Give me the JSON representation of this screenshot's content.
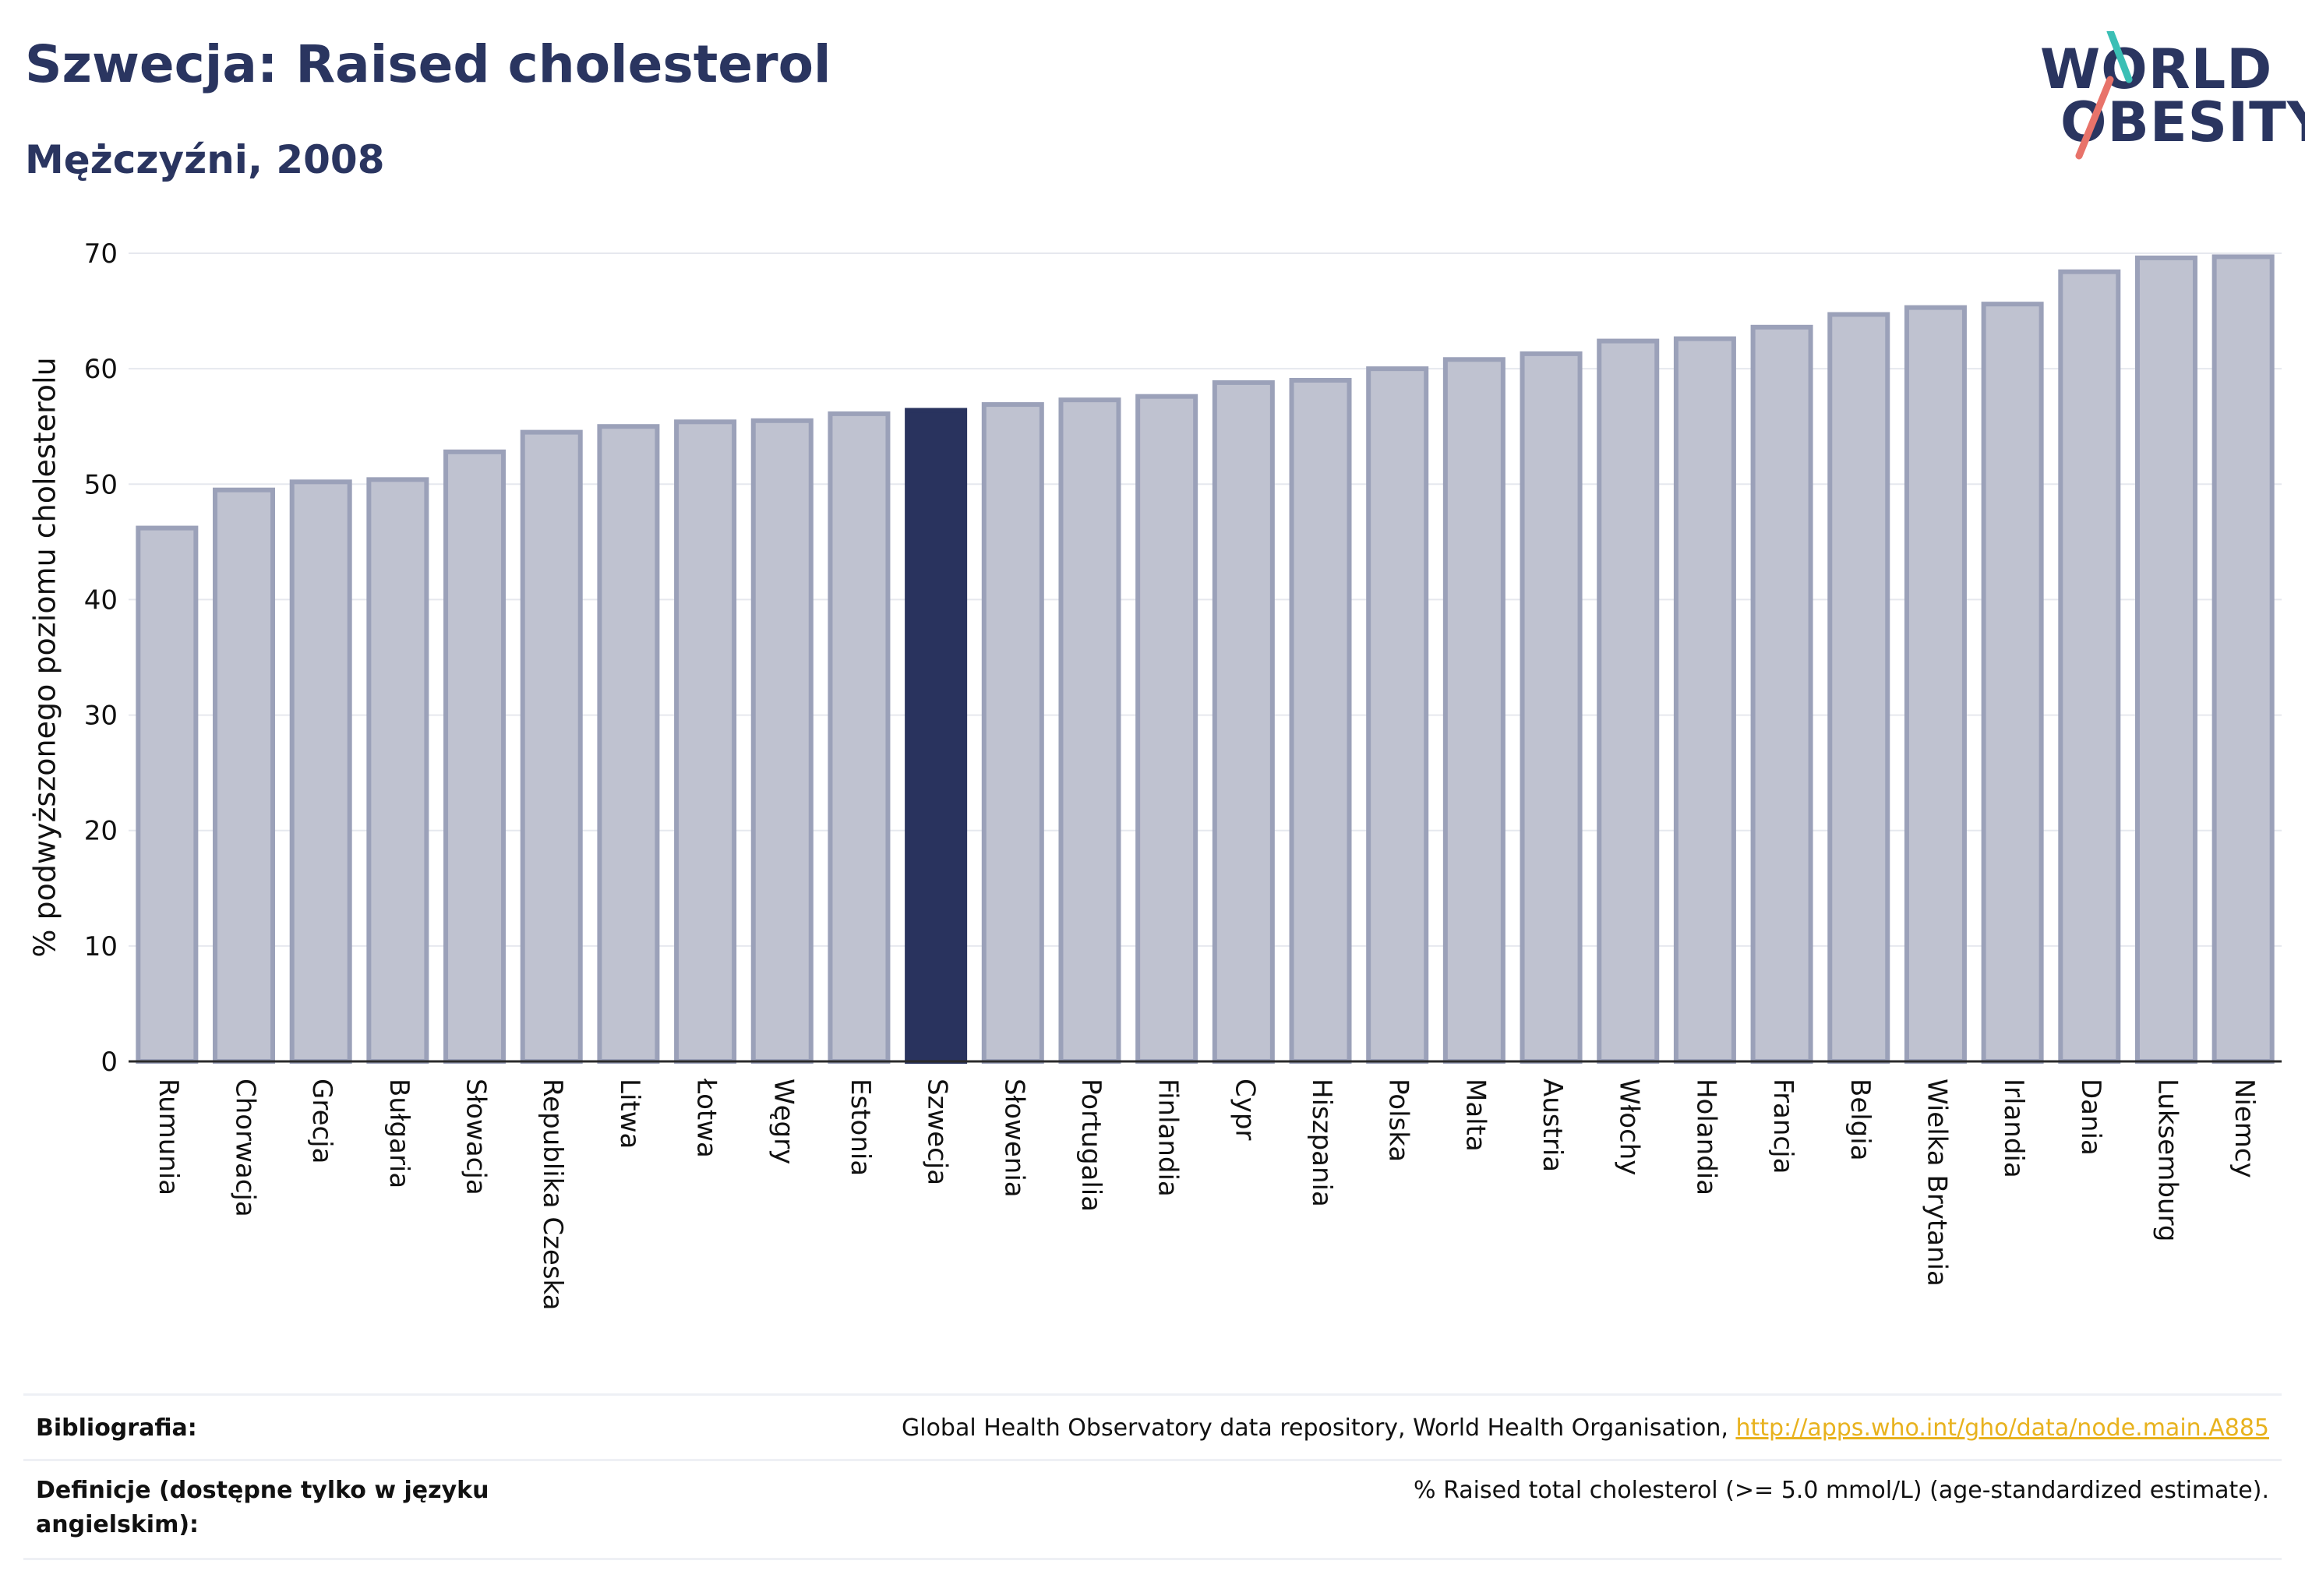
{
  "header": {
    "title": "Szwecja: Raised cholesterol",
    "subtitle": "Mężczyźni, 2008"
  },
  "logo": {
    "line1": "WORLD",
    "line2": "OBESITY"
  },
  "colors": {
    "bar": "#bfc2d0",
    "bar_border": "#9ba1b9",
    "highlight": "#29335e",
    "axis": "#2a2a2a",
    "grid": "#e6e8ee",
    "title": "#2a3560",
    "link": "#e8b21e"
  },
  "chart_data": {
    "type": "bar",
    "title": "Szwecja: Raised cholesterol",
    "subtitle": "Mężczyźni, 2008",
    "ylabel": "% podwyższonego poziomu cholesterolu",
    "xlabel": "",
    "ylim": [
      0,
      70
    ],
    "yticks": [
      0,
      10,
      20,
      30,
      40,
      50,
      60,
      70
    ],
    "grid": true,
    "highlight": "Szwecja",
    "categories": [
      "Rumunia",
      "Chorwacja",
      "Grecja",
      "Bułgaria",
      "Słowacja",
      "Republika Czeska",
      "Litwa",
      "Łotwa",
      "Węgry",
      "Estonia",
      "Szwecja",
      "Słowenia",
      "Portugalia",
      "Finlandia",
      "Cypr",
      "Hiszpania",
      "Polska",
      "Malta",
      "Austria",
      "Włochy",
      "Holandia",
      "Francja",
      "Belgia",
      "Wielka Brytania",
      "Irlandia",
      "Dania",
      "Luksemburg",
      "Niemcy"
    ],
    "values": [
      46.2,
      49.5,
      50.2,
      50.4,
      52.8,
      54.5,
      55.0,
      55.4,
      55.5,
      56.1,
      56.4,
      56.9,
      57.3,
      57.6,
      58.8,
      59.0,
      60.0,
      60.8,
      61.3,
      62.4,
      62.6,
      63.6,
      64.7,
      65.3,
      65.6,
      68.4,
      69.6,
      69.7
    ]
  },
  "footer": {
    "bibliography_label": "Bibliografia:",
    "bibliography_text": "Global Health Observatory data repository, World Health Organisation,",
    "bibliography_link": "http://apps.who.int/gho/data/node.main.A885",
    "definitions_label": "Definicje (dostępne tylko w języku angielskim):",
    "definitions_text": "% Raised total cholesterol (>= 5.0 mmol/L) (age-standardized estimate)."
  }
}
